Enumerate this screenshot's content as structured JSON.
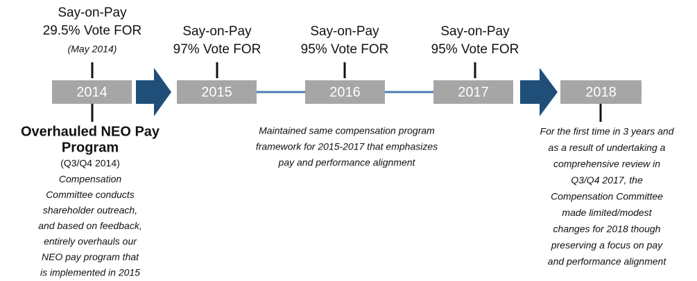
{
  "timeline": [
    {
      "year": "2014",
      "above": [
        "Say-on-Pay",
        "29.5% Vote FOR"
      ],
      "above_note": "(May 2014)",
      "below_title": [
        "Overhauled NEO Pay",
        "Program"
      ],
      "below_date": "(Q3/Q4 2014)",
      "below": [
        "Compensation",
        "Committee conducts",
        "shareholder outreach,",
        "and based on feedback,",
        "entirely overhauls our",
        "NEO pay program that",
        "is implemented in 2015"
      ]
    },
    {
      "year": "2015",
      "above": [
        "Say-on-Pay",
        "97% Vote FOR"
      ]
    },
    {
      "year": "2016",
      "above": [
        "Say-on-Pay",
        "95% Vote FOR"
      ]
    },
    {
      "year": "2017",
      "above": [
        "Say-on-Pay",
        "95% Vote FOR"
      ]
    },
    {
      "year": "2018",
      "below": [
        "For the first time in 3 years and",
        "as a result of undertaking a",
        "comprehensive review in",
        "Q3/Q4 2017, the",
        "Compensation Committee",
        "made limited/modest",
        "changes for 2018 though",
        "preserving a focus on pay",
        "and performance alignment"
      ]
    }
  ],
  "shared_note": [
    "Maintained same compensation program",
    "framework for 2015-2017 that emphasizes",
    "pay and performance alignment"
  ]
}
